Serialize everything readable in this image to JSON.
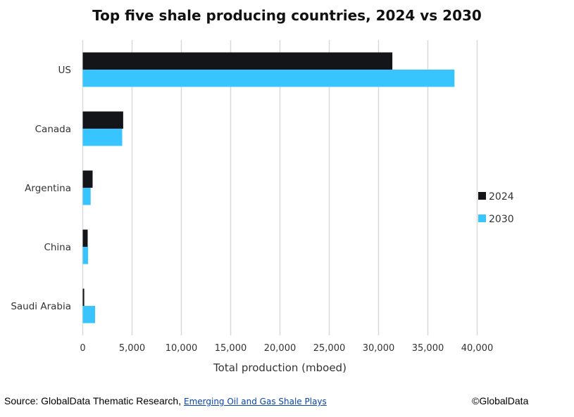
{
  "chart_data": {
    "type": "bar",
    "orientation": "horizontal",
    "title": "Top five shale producing countries, 2024 vs 2030",
    "categories": [
      "US",
      "Canada",
      "Argentina",
      "China",
      "Saudi Arabia"
    ],
    "series": [
      {
        "name": "2024",
        "color": "#141519",
        "values": [
          31400,
          4100,
          1000,
          500,
          150
        ]
      },
      {
        "name": "2030",
        "color": "#38c4ff",
        "values": [
          37700,
          4000,
          800,
          540,
          1250
        ]
      }
    ],
    "xlabel": "Total production (mboed)",
    "ylabel": "",
    "xlim": [
      0,
      40000
    ],
    "xticks": [
      "0",
      "5,000",
      "10,000",
      "15,000",
      "20,000",
      "25,000",
      "30,000",
      "35,000",
      "40,000"
    ],
    "grid": true,
    "legend_position": "right"
  },
  "footer": {
    "source_prefix": "Source: GlobalData Thematic Research,",
    "source_link": "Emerging Oil and Gas Shale Plays",
    "copyright": "©GlobalData"
  }
}
